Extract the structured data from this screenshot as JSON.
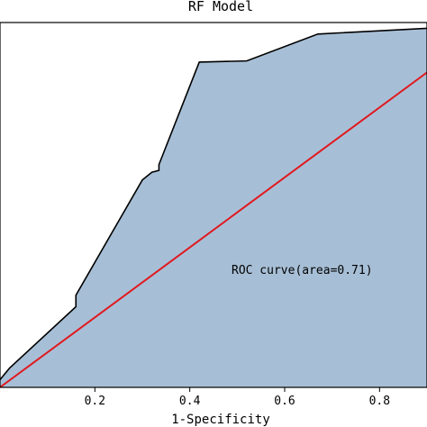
{
  "chart_data": {
    "type": "area",
    "title": "RF Model",
    "xlabel": "1-Specificity",
    "ylabel": "",
    "xlim": [
      0.0,
      0.9
    ],
    "ylim": [
      0.0,
      0.95
    ],
    "x_ticks": [
      0.2,
      0.4,
      0.6,
      0.8
    ],
    "x_tick_labels": [
      "0.2",
      "0.4",
      "0.6",
      "0.8"
    ],
    "grid": false,
    "annotation": "ROC curve(area=0.71)",
    "colors": {
      "fill": "#a7bfd6",
      "curve": "#000000",
      "diagonal": "#e0191f"
    },
    "series": [
      {
        "x": [
          0.0,
          0.02,
          0.16,
          0.16,
          0.3,
          0.32,
          0.335,
          0.335,
          0.42,
          0.52,
          0.67,
          0.9
        ],
        "y": [
          0.02,
          0.05,
          0.21,
          0.24,
          0.54,
          0.56,
          0.565,
          0.58,
          0.847,
          0.85,
          0.92,
          0.935
        ]
      },
      {
        "x": [
          0.0,
          0.9
        ],
        "y": [
          0.0,
          0.82
        ]
      }
    ]
  }
}
